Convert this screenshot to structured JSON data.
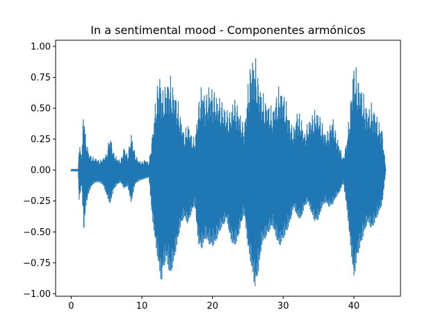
{
  "chart_data": {
    "type": "line",
    "title": "In a sentimental mood - Componentes armónicos",
    "xlabel": "",
    "ylabel": "",
    "xlim": [
      -2.2,
      46.6
    ],
    "ylim": [
      -1.02,
      1.05
    ],
    "x_ticks": [
      0,
      10,
      20,
      30,
      40
    ],
    "x_tick_labels": [
      "0",
      "10",
      "20",
      "30",
      "40"
    ],
    "y_ticks": [
      -1.0,
      -0.75,
      -0.5,
      -0.25,
      0.0,
      0.25,
      0.5,
      0.75,
      1.0
    ],
    "y_tick_labels": [
      "−1.00",
      "−0.75",
      "−0.50",
      "−0.25",
      "0.00",
      "0.25",
      "0.50",
      "0.75",
      "1.00"
    ],
    "grid": false,
    "legend": "none",
    "color": "#1f77b4",
    "series": [
      {
        "x": [
          0.0,
          0.5,
          1.0,
          1.1,
          1.5,
          1.8,
          2.0,
          2.5,
          3.0,
          3.5,
          4.0,
          4.5,
          5.0,
          5.5,
          6.0,
          6.5,
          7.0,
          7.5,
          8.0,
          8.5,
          9.0,
          9.5,
          10.0,
          10.5,
          11.0,
          11.5,
          12.0,
          12.5,
          12.8,
          13.0,
          13.5,
          14.0,
          14.5,
          15.0,
          15.5,
          16.0,
          16.5,
          17.0,
          17.5,
          18.0,
          18.5,
          19.0,
          19.5,
          20.0,
          20.5,
          21.0,
          21.5,
          22.0,
          22.5,
          23.0,
          23.5,
          24.0,
          24.5,
          25.0,
          25.5,
          26.0,
          26.5,
          27.0,
          27.5,
          28.0,
          28.5,
          29.0,
          29.5,
          30.0,
          30.5,
          31.0,
          31.5,
          32.0,
          32.5,
          33.0,
          33.5,
          34.0,
          34.5,
          35.0,
          35.5,
          36.0,
          36.5,
          37.0,
          37.5,
          38.0,
          38.5,
          39.0,
          39.5,
          40.0,
          40.5,
          41.0,
          41.5,
          42.0,
          42.5,
          43.0,
          43.5,
          44.0,
          44.5
        ],
        "upper": [
          0.01,
          0.01,
          0.01,
          0.23,
          0.12,
          0.6,
          0.3,
          0.14,
          0.11,
          0.1,
          0.08,
          0.1,
          0.14,
          0.3,
          0.15,
          0.1,
          0.08,
          0.2,
          0.12,
          0.31,
          0.15,
          0.08,
          0.07,
          0.09,
          0.06,
          0.3,
          0.62,
          0.82,
          0.7,
          0.65,
          0.74,
          0.78,
          0.68,
          0.6,
          0.45,
          0.3,
          0.4,
          0.3,
          0.25,
          0.55,
          0.72,
          0.6,
          0.7,
          0.68,
          0.62,
          0.6,
          0.55,
          0.5,
          0.48,
          0.6,
          0.55,
          0.45,
          0.35,
          0.7,
          0.93,
          0.96,
          0.75,
          0.65,
          0.58,
          0.55,
          0.5,
          0.62,
          0.7,
          0.65,
          0.55,
          0.4,
          0.35,
          0.5,
          0.45,
          0.3,
          0.4,
          0.45,
          0.5,
          0.48,
          0.4,
          0.3,
          0.35,
          0.45,
          0.3,
          0.2,
          0.1,
          0.25,
          0.55,
          0.9,
          0.8,
          0.7,
          0.6,
          0.5,
          0.55,
          0.5,
          0.4,
          0.35,
          0.02
        ],
        "lower": [
          -0.01,
          -0.01,
          -0.01,
          -0.25,
          -0.12,
          -0.52,
          -0.32,
          -0.18,
          -0.12,
          -0.1,
          -0.1,
          -0.12,
          -0.2,
          -0.28,
          -0.16,
          -0.12,
          -0.1,
          -0.15,
          -0.13,
          -0.27,
          -0.12,
          -0.09,
          -0.08,
          -0.07,
          -0.06,
          -0.4,
          -0.62,
          -0.82,
          -0.92,
          -0.8,
          -0.72,
          -0.86,
          -0.75,
          -0.6,
          -0.45,
          -0.38,
          -0.44,
          -0.35,
          -0.28,
          -0.6,
          -0.64,
          -0.55,
          -0.6,
          -0.62,
          -0.58,
          -0.5,
          -0.45,
          -0.4,
          -0.55,
          -0.62,
          -0.58,
          -0.45,
          -0.35,
          -0.62,
          -0.78,
          -0.95,
          -0.82,
          -0.6,
          -0.55,
          -0.5,
          -0.45,
          -0.55,
          -0.62,
          -0.56,
          -0.5,
          -0.42,
          -0.3,
          -0.38,
          -0.4,
          -0.3,
          -0.26,
          -0.35,
          -0.42,
          -0.4,
          -0.3,
          -0.26,
          -0.3,
          -0.28,
          -0.22,
          -0.18,
          -0.1,
          -0.3,
          -0.6,
          -0.88,
          -0.7,
          -0.6,
          -0.5,
          -0.42,
          -0.48,
          -0.42,
          -0.35,
          -0.28,
          -0.02
        ]
      }
    ]
  }
}
